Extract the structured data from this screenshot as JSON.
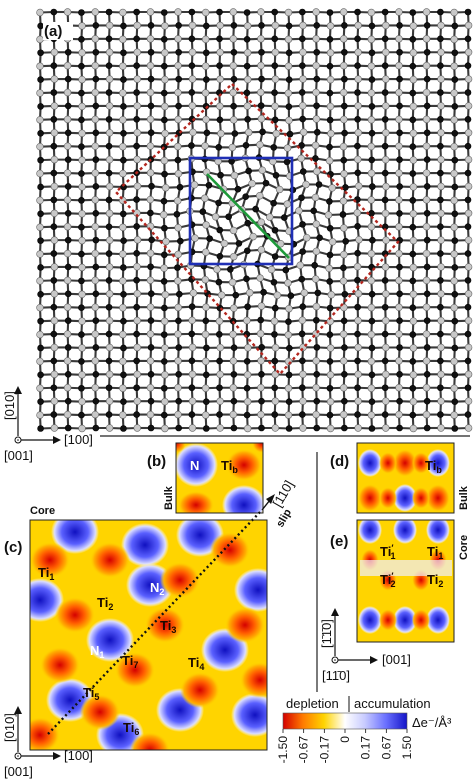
{
  "panel_a": {
    "label": "(a)",
    "axis_y": "[010]",
    "axis_x": "[100]",
    "axis_origin": "[001]"
  },
  "panel_b": {
    "label": "(b)",
    "side_label": "Bulk",
    "atom_n": "N",
    "atom_ti": "Ti",
    "atom_ti_sub": "b"
  },
  "panel_c": {
    "label": "(c)",
    "core_label": "Core",
    "slip_label": "slip",
    "slip_dir": "[110]",
    "atoms": [
      {
        "name": "Ti",
        "sub": "1"
      },
      {
        "name": "Ti",
        "sub": "2"
      },
      {
        "name": "N",
        "sub": "2"
      },
      {
        "name": "Ti",
        "sub": "3"
      },
      {
        "name": "N",
        "sub": "1"
      },
      {
        "name": "Ti",
        "sub": "7"
      },
      {
        "name": "Ti",
        "sub": "4"
      },
      {
        "name": "Ti",
        "sub": "5"
      },
      {
        "name": "Ti",
        "sub": "6"
      }
    ],
    "axis_y": "[010]",
    "axis_x": "[100]",
    "axis_origin": "[001]"
  },
  "panel_d": {
    "label": "(d)",
    "side_label": "Bulk",
    "atom_ti": "Ti",
    "atom_ti_sub": "b"
  },
  "panel_e": {
    "label": "(e)",
    "side_label": "Core",
    "atoms": [
      {
        "name": "Ti",
        "sub": "1",
        "prime": true
      },
      {
        "name": "Ti",
        "sub": "1",
        "prime": false
      },
      {
        "name": "Ti",
        "sub": "2",
        "prime": true
      },
      {
        "name": "Ti",
        "sub": "2",
        "prime": false
      }
    ],
    "axis_y": "[1̄1̄0]",
    "axis_x": "[001]",
    "axis_origin": "[11̄0]"
  },
  "colorbar": {
    "left_label": "depletion",
    "right_label": "accumulation",
    "unit": "Δe⁻/Å³",
    "ticks": [
      "-1.50",
      "-0.67",
      "-0.17",
      "0",
      "0.17",
      "0.67",
      "1.50"
    ],
    "colors": [
      "#d40000",
      "#ff7a00",
      "#ffd400",
      "#ffffff",
      "#c8cbff",
      "#6a70ff",
      "#1414c8"
    ]
  }
}
